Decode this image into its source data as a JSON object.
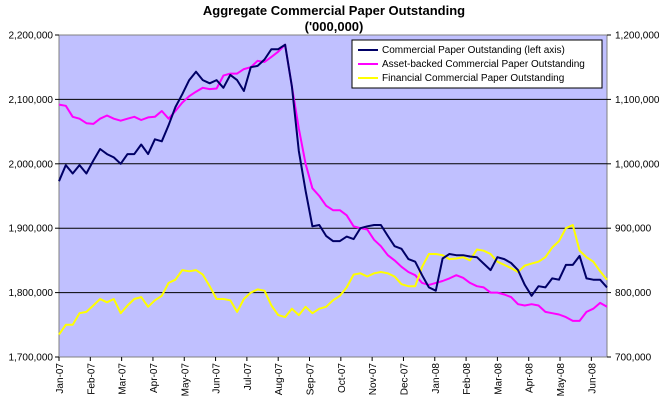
{
  "chart_data": {
    "type": "line",
    "title": "Aggregate Commercial Paper Outstanding",
    "subtitle": "('000,000)",
    "plot_background": "#c0c0ff",
    "grid": true,
    "legend_position": "top-right",
    "x_tick_labels": [
      "Jan-07",
      "Feb-07",
      "Mar-07",
      "Apr-07",
      "May-07",
      "Jun-07",
      "Jul-07",
      "Aug-07",
      "Sep-07",
      "Oct-07",
      "Nov-07",
      "Dec-07",
      "Jan-08",
      "Feb-08",
      "Mar-08",
      "Apr-08",
      "May-08",
      "Jun-08"
    ],
    "y_left": {
      "min": 1700000,
      "max": 2200000,
      "ticks": [
        "1,700,000",
        "1,800,000",
        "1,900,000",
        "2,000,000",
        "2,100,000",
        "2,200,000"
      ]
    },
    "y_right": {
      "min": 700000,
      "max": 1200000,
      "ticks": [
        "700,000",
        "800,000",
        "900,000",
        "1,000,000",
        "1,100,000",
        "1,200,000"
      ]
    },
    "series": [
      {
        "name": "Commercial Paper Outstanding (left axis)",
        "axis": "left",
        "color": "#000066",
        "values": [
          1973000,
          1998000,
          1985000,
          1998000,
          1985000,
          2005000,
          2023000,
          2015000,
          2010000,
          2000000,
          2015000,
          2015000,
          2030000,
          2015000,
          2038000,
          2035000,
          2060000,
          2088000,
          2108000,
          2130000,
          2143000,
          2130000,
          2125000,
          2130000,
          2118000,
          2138000,
          2130000,
          2113000,
          2150000,
          2152000,
          2162000,
          2178000,
          2178000,
          2185000,
          2120000,
          2020000,
          1958000,
          1903000,
          1905000,
          1888000,
          1880000,
          1880000,
          1887000,
          1883000,
          1900000,
          1903000,
          1905000,
          1905000,
          1888000,
          1872000,
          1868000,
          1852000,
          1848000,
          1827000,
          1808000,
          1803000,
          1853000,
          1860000,
          1858000,
          1858000,
          1856000,
          1855000,
          1845000,
          1835000,
          1855000,
          1852000,
          1846000,
          1835000,
          1812000,
          1795000,
          1810000,
          1808000,
          1822000,
          1820000,
          1843000,
          1843000,
          1857000,
          1822000,
          1820000,
          1820000,
          1808000
        ]
      },
      {
        "name": "Asset-backed Commercial Paper Outstanding",
        "axis": "right",
        "color": "#ff00ff",
        "values": [
          1092000,
          1090000,
          1073000,
          1070000,
          1063000,
          1062000,
          1070000,
          1075000,
          1070000,
          1067000,
          1070000,
          1073000,
          1068000,
          1072000,
          1073000,
          1082000,
          1070000,
          1082000,
          1095000,
          1105000,
          1112000,
          1118000,
          1116000,
          1117000,
          1137000,
          1140000,
          1140000,
          1147000,
          1150000,
          1160000,
          1158000,
          1166000,
          1174000,
          1185000,
          1120000,
          1055000,
          1000000,
          962000,
          950000,
          935000,
          928000,
          928000,
          920000,
          903000,
          900000,
          898000,
          882000,
          872000,
          858000,
          850000,
          840000,
          832000,
          827000,
          815000,
          812000,
          815000,
          818000,
          822000,
          827000,
          823000,
          815000,
          810000,
          808000,
          800000,
          800000,
          797000,
          793000,
          782000,
          780000,
          782000,
          780000,
          770000,
          768000,
          766000,
          762000,
          756000,
          756000,
          770000,
          775000,
          784000,
          778000
        ]
      },
      {
        "name": "Financial Commercial Paper Outstanding",
        "axis": "right",
        "color": "#ffff00",
        "values": [
          735000,
          750000,
          750000,
          768000,
          770000,
          780000,
          790000,
          785000,
          790000,
          768000,
          780000,
          790000,
          793000,
          778000,
          788000,
          795000,
          815000,
          820000,
          835000,
          833000,
          835000,
          828000,
          810000,
          790000,
          790000,
          788000,
          770000,
          790000,
          800000,
          805000,
          803000,
          780000,
          765000,
          762000,
          775000,
          765000,
          778000,
          768000,
          775000,
          778000,
          788000,
          795000,
          808000,
          828000,
          830000,
          825000,
          830000,
          832000,
          830000,
          825000,
          813000,
          810000,
          810000,
          840000,
          860000,
          860000,
          858000,
          852000,
          853000,
          855000,
          850000,
          867000,
          865000,
          860000,
          848000,
          843000,
          838000,
          832000,
          842000,
          845000,
          848000,
          855000,
          870000,
          880000,
          900000,
          905000,
          865000,
          855000,
          848000,
          833000,
          820000
        ]
      }
    ]
  }
}
